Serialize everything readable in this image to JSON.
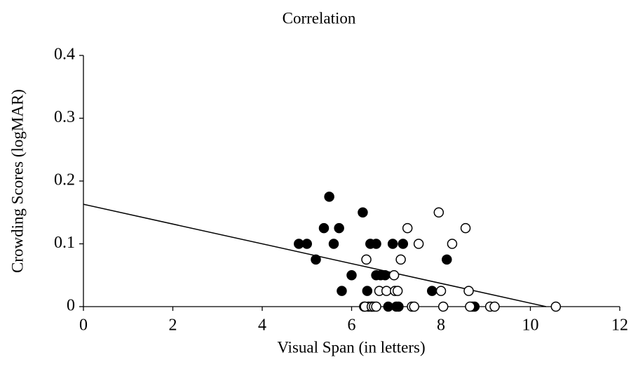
{
  "chart_data": {
    "type": "scatter",
    "title": "Correlation",
    "x_label": "Visual Span (in letters)",
    "y_label": "Crowding Scores (logMAR)",
    "xlim": [
      0,
      12
    ],
    "xticks": [
      0,
      2,
      4,
      6,
      8,
      10,
      12
    ],
    "ylim": [
      0,
      0.4
    ],
    "yticks": [
      0,
      0.1,
      0.2,
      0.3,
      0.4
    ],
    "grid": false,
    "series": [
      {
        "color": "#000000",
        "marker": "filled",
        "x": [
          4.82,
          5.0,
          5.2,
          5.38,
          5.5,
          5.6,
          5.72,
          5.78,
          6.0,
          6.25,
          6.28,
          6.35,
          6.38,
          6.42,
          6.45,
          6.55,
          6.55,
          6.65,
          6.75,
          6.82,
          6.92,
          7.0,
          7.05,
          7.15,
          7.8,
          8.13,
          8.7,
          8.75
        ],
        "values": [
          0.1,
          0.1,
          0.075,
          0.125,
          0.175,
          0.1,
          0.125,
          0.025,
          0.05,
          0.15,
          0,
          0.025,
          0,
          0.1,
          0,
          0.1,
          0.05,
          0.05,
          0.05,
          0,
          0.1,
          0,
          0,
          0.1,
          0.025,
          0.075,
          0,
          0
        ]
      },
      {
        "color": "#000000",
        "marker": "open",
        "x": [
          6.3,
          6.33,
          6.45,
          6.5,
          6.55,
          6.62,
          6.78,
          6.95,
          6.97,
          7.03,
          7.1,
          7.25,
          7.35,
          7.4,
          7.5,
          7.95,
          8.0,
          8.05,
          8.25,
          8.55,
          8.62,
          8.65,
          9.1,
          9.2,
          10.57
        ],
        "values": [
          0,
          0.075,
          0,
          0,
          0,
          0.025,
          0.025,
          0.05,
          0.025,
          0.025,
          0.075,
          0.125,
          0,
          0,
          0.1,
          0.15,
          0.025,
          0,
          0.1,
          0.125,
          0.025,
          0,
          0,
          0,
          0
        ]
      }
    ],
    "trendline": {
      "color": "#000000",
      "x": [
        0,
        10.35
      ],
      "y": [
        0.163,
        0
      ]
    }
  }
}
